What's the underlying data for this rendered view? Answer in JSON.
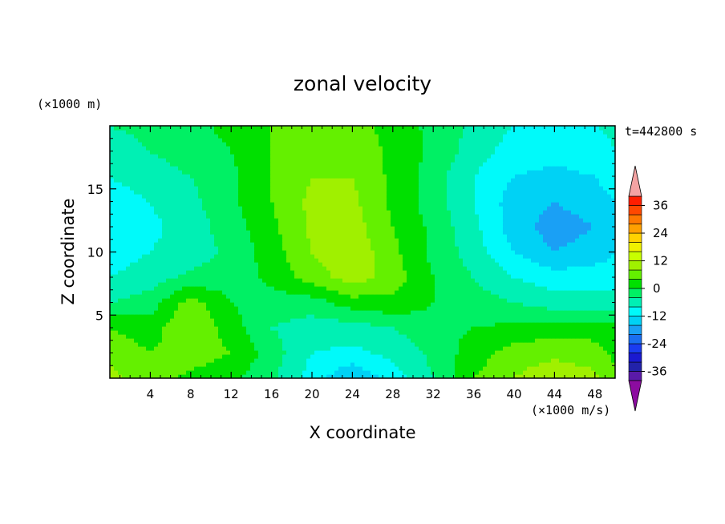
{
  "chart_data": {
    "type": "heatmap",
    "title": "zonal velocity",
    "xlabel": "X coordinate",
    "ylabel": "Z coordinate",
    "x_unit": "(×1000 m/s)",
    "y_unit": "(×1000 m)",
    "time_label": "t=442800 s",
    "xlim": [
      0,
      50
    ],
    "ylim": [
      0,
      20
    ],
    "x_ticks": [
      4,
      8,
      12,
      16,
      20,
      24,
      28,
      32,
      36,
      40,
      44,
      48
    ],
    "y_ticks": [
      5,
      10,
      15
    ],
    "colorbar": {
      "levels": [
        -40,
        -36,
        -32,
        -28,
        -24,
        -20,
        -16,
        -12,
        -8,
        -4,
        0,
        4,
        8,
        12,
        16,
        20,
        24,
        28,
        32,
        36,
        40
      ],
      "colors": [
        "#5a1aa8",
        "#2222aa",
        "#1a1ad0",
        "#1a3cf0",
        "#1a6ef0",
        "#1aa0f5",
        "#00d2f5",
        "#00fafa",
        "#00f0b4",
        "#00f064",
        "#00e000",
        "#64f000",
        "#a0f000",
        "#c8ff00",
        "#f0f000",
        "#ffd200",
        "#ffa000",
        "#ff7800",
        "#ff4800",
        "#ff1e00"
      ],
      "under_color": "#8c0ca0",
      "over_color": "#f4a3a3",
      "tick_labels": [
        "36",
        "24",
        "12",
        "0",
        "-12",
        "-24",
        "-36"
      ],
      "tick_values": [
        36,
        24,
        12,
        0,
        -12,
        -24,
        -36
      ]
    },
    "field_description_values": {
      "x_samples": [
        0,
        4,
        8,
        12,
        16,
        20,
        24,
        28,
        32,
        36,
        40,
        44,
        48,
        50
      ],
      "z_samples": [
        0,
        2,
        4,
        6,
        8,
        10,
        12,
        14,
        16,
        18,
        20
      ],
      "u": [
        [
          9,
          6,
          3,
          1,
          -3,
          -10,
          -16,
          -10,
          -4,
          4,
          8,
          11,
          9,
          5
        ],
        [
          7,
          4,
          6,
          4,
          -2,
          -8,
          -9,
          -7,
          -3,
          2,
          6,
          7,
          6,
          3
        ],
        [
          4,
          2,
          8,
          2,
          -4,
          -6,
          -6,
          -4,
          -1,
          0,
          1,
          2,
          2,
          1
        ],
        [
          -4,
          -2,
          6,
          0,
          -2,
          -2,
          2,
          3,
          0,
          -2,
          -4,
          -6,
          -6,
          -6
        ],
        [
          -8,
          -6,
          -3,
          -2,
          1,
          6,
          10,
          6,
          0,
          -4,
          -8,
          -10,
          -10,
          -10
        ],
        [
          -10,
          -8,
          -6,
          -3,
          2,
          8,
          11,
          5,
          -1,
          -6,
          -12,
          -16,
          -14,
          -12
        ],
        [
          -10,
          -9,
          -6,
          -2,
          3,
          9,
          10,
          4,
          -1,
          -7,
          -14,
          -18,
          -16,
          -14
        ],
        [
          -10,
          -8,
          -5,
          -1,
          4,
          9,
          9,
          3,
          -2,
          -8,
          -14,
          -16,
          -14,
          -12
        ],
        [
          -8,
          -6,
          -4,
          -1,
          4,
          8,
          8,
          3,
          -2,
          -8,
          -12,
          -13,
          -12,
          -10
        ],
        [
          -6,
          -4,
          -2,
          0,
          4,
          7,
          7,
          3,
          -1,
          -6,
          -10,
          -11,
          -10,
          -8
        ],
        [
          -4,
          -3,
          -1,
          1,
          4,
          6,
          6,
          2,
          -1,
          -5,
          -8,
          -9,
          -8,
          -7
        ]
      ]
    }
  }
}
